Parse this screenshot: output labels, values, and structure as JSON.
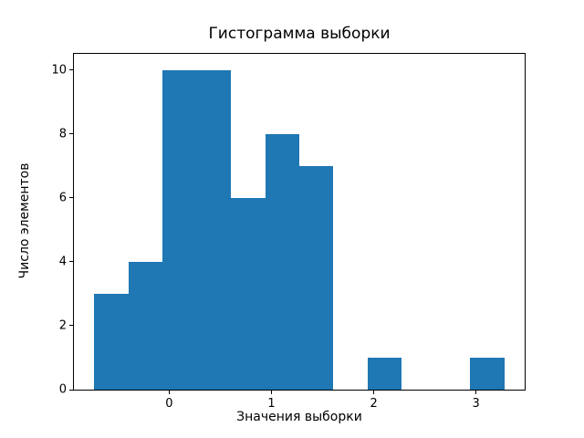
{
  "chart_data": {
    "type": "bar",
    "subtype": "histogram",
    "title": "Гистограмма выборки",
    "xlabel": "Значения выборки",
    "ylabel": "Число элементов",
    "bin_edges": [
      -0.732,
      -0.398,
      -0.064,
      0.27,
      0.604,
      0.938,
      1.272,
      1.606,
      1.94,
      2.274,
      2.608,
      2.942,
      3.276
    ],
    "counts": [
      3,
      4,
      10,
      10,
      6,
      8,
      7,
      0,
      1,
      0,
      0,
      1
    ],
    "xticks": [
      0,
      1,
      2,
      3
    ],
    "yticks": [
      0,
      2,
      4,
      6,
      8,
      10
    ],
    "xlim": [
      -0.932,
      3.476
    ],
    "ylim": [
      0,
      10.5
    ],
    "bar_color": "#1f77b4",
    "axes_color": "#000000",
    "background_color": "#ffffff",
    "grid": false,
    "legend": null
  }
}
